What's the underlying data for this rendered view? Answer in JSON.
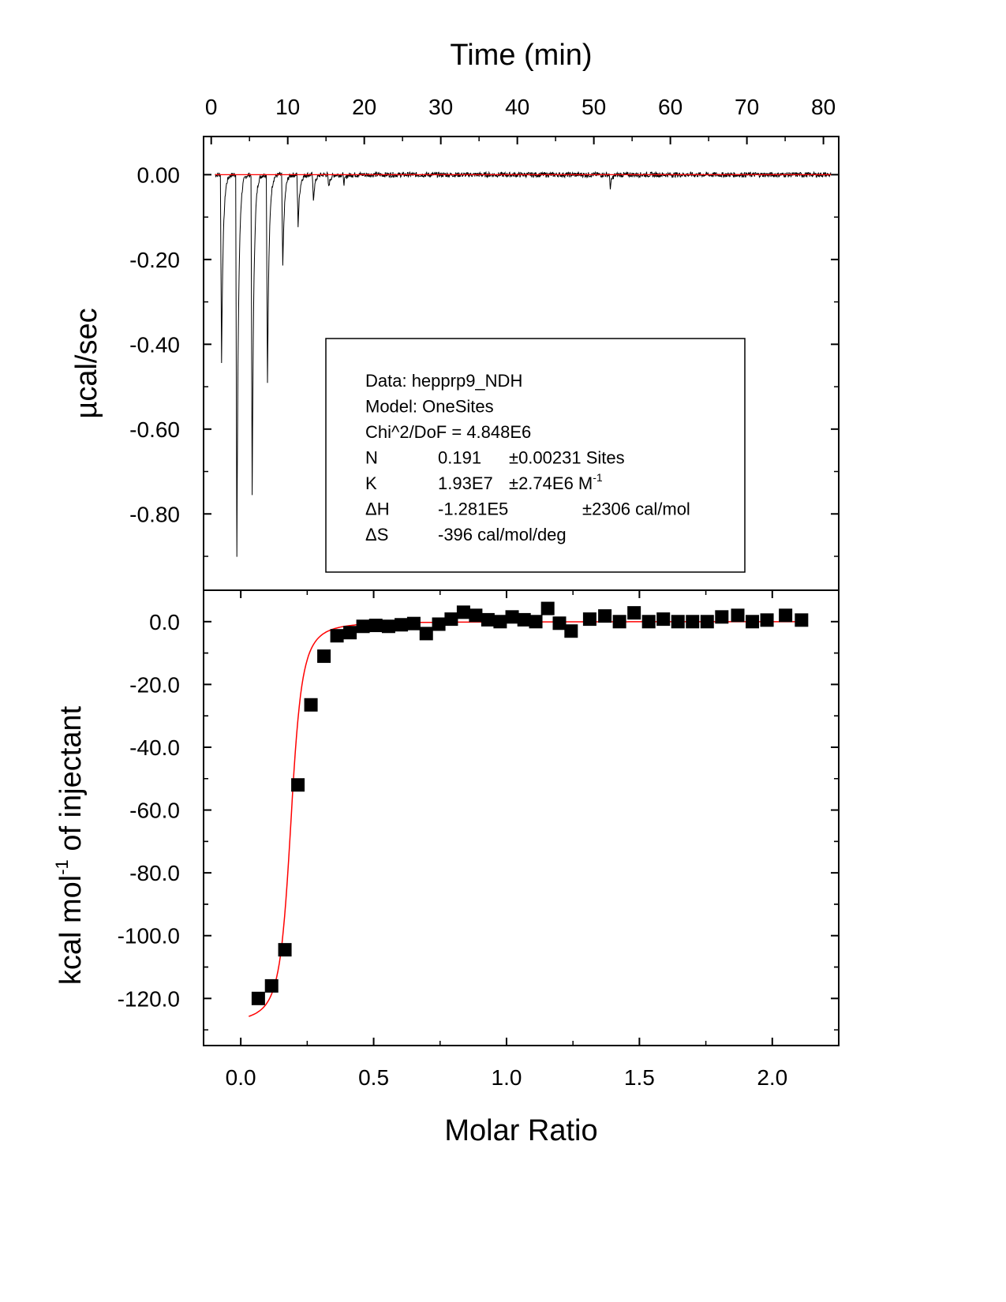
{
  "chart_data": [
    {
      "type": "line",
      "panel": "top",
      "title": "",
      "xlabel": "Time (min)",
      "ylabel": "µcal/sec",
      "xlim": [
        -1,
        82
      ],
      "ylim": [
        -0.98,
        0.09
      ],
      "x_ticks": [
        0,
        10,
        20,
        30,
        40,
        50,
        60,
        70,
        80
      ],
      "x_tick_labels": [
        "0",
        "10",
        "20",
        "30",
        "40",
        "50",
        "60",
        "70",
        "80"
      ],
      "y_ticks": [
        0.0,
        -0.2,
        -0.4,
        -0.6,
        -0.8
      ],
      "y_tick_labels": [
        "0.00",
        "-0.20",
        "-0.40",
        "-0.60",
        "-0.80"
      ],
      "series": [
        {
          "color": "#000000",
          "baseline": 0.0,
          "noise_amplitude": 0.006,
          "x_start": 0.5,
          "x_end": 81,
          "injections": [
            {
              "t": 1.2,
              "depth": -0.44
            },
            {
              "t": 3.2,
              "depth": -0.9
            },
            {
              "t": 5.2,
              "depth": -0.76
            },
            {
              "t": 7.2,
              "depth": -0.49
            },
            {
              "t": 9.2,
              "depth": -0.22
            },
            {
              "t": 11.2,
              "depth": -0.12
            },
            {
              "t": 13.2,
              "depth": -0.06
            },
            {
              "t": 15.2,
              "depth": -0.03
            },
            {
              "t": 17.2,
              "depth": -0.02
            },
            {
              "t": 52.0,
              "depth": -0.03
            }
          ]
        },
        {
          "color": "#ff0000",
          "x": [
            0.5,
            81
          ],
          "y": [
            0.0,
            0.0
          ]
        }
      ],
      "legend": {
        "placement": "center-right",
        "lines": [
          {
            "label": "Data: hepprp9_NDH",
            "value": "",
            "err": ""
          },
          {
            "label": "Model: OneSites",
            "value": "",
            "err": ""
          },
          {
            "label": "Chi^2/DoF = 4.848E6",
            "value": "",
            "err": ""
          },
          {
            "label": "N",
            "value": "0.191",
            "err": "±0.00231 Sites"
          },
          {
            "label": "K",
            "value": "1.93E7",
            "err": "±2.74E6 M",
            "sup": "-1"
          },
          {
            "label": "ΔH",
            "value": "-1.281E5",
            "err": "±2306 cal/mol"
          },
          {
            "label": "ΔS",
            "value": "-396 cal/mol/deg",
            "err": ""
          }
        ]
      }
    },
    {
      "type": "scatter",
      "panel": "bottom",
      "title": "",
      "xlabel": "Molar Ratio",
      "ylabel": "kcal mol",
      "ylabel_sup": "-1",
      "ylabel_rest": " of injectant",
      "xlim": [
        -0.14,
        2.25
      ],
      "ylim": [
        -135,
        10
      ],
      "x_ticks": [
        0.0,
        0.5,
        1.0,
        1.5,
        2.0
      ],
      "x_tick_labels": [
        "0.0",
        "0.5",
        "1.0",
        "1.5",
        "2.0"
      ],
      "y_ticks": [
        0,
        -20,
        -40,
        -60,
        -80,
        -100,
        -120
      ],
      "y_tick_labels": [
        "0.0",
        "-20.0",
        "-40.0",
        "-60.0",
        "-80.0",
        "-100.0",
        "-120.0"
      ],
      "series": [
        {
          "marker": "square",
          "color": "#000000",
          "x": [
            0.066,
            0.116,
            0.166,
            0.215,
            0.264,
            0.313,
            0.362,
            0.411,
            0.46,
            0.508,
            0.556,
            0.604,
            0.651,
            0.698,
            0.745,
            0.792,
            0.838,
            0.884,
            0.93,
            0.976,
            1.021,
            1.066,
            1.11,
            1.155,
            1.199,
            1.243,
            1.313,
            1.37,
            1.425,
            1.48,
            1.535,
            1.59,
            1.645,
            1.7,
            1.755,
            1.81,
            1.87,
            1.925,
            1.98,
            2.05,
            2.11
          ],
          "y": [
            -120,
            -116,
            -104.5,
            -52,
            -26.5,
            -11,
            -4.5,
            -3.5,
            -1.5,
            -1.2,
            -1.5,
            -1.0,
            -0.6,
            -3.8,
            -0.8,
            0.8,
            3.0,
            2.0,
            0.6,
            0.0,
            1.5,
            0.6,
            0.0,
            4.2,
            -0.5,
            -3.0,
            0.8,
            1.8,
            0.0,
            2.8,
            0.0,
            0.8,
            0.0,
            0.0,
            0.0,
            1.5,
            2.0,
            0.0,
            0.5,
            2.0,
            0.5
          ]
        },
        {
          "color": "#ff0000",
          "fit": "onesite",
          "n": 0.191,
          "k": 19300000.0,
          "dh_kcal": -128.1,
          "cell_conc": 2e-05,
          "x_start": 0.03,
          "x_end": 2.12
        }
      ]
    }
  ]
}
